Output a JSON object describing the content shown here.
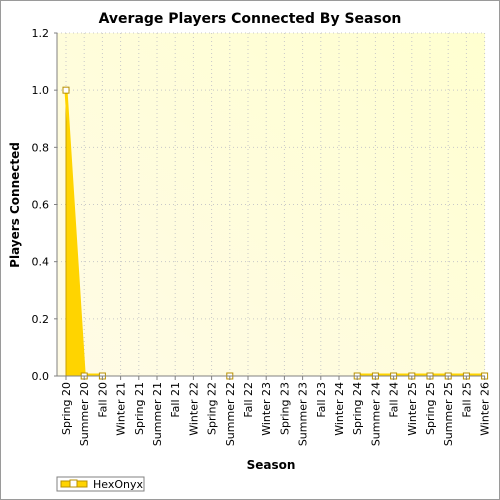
{
  "chart_data": {
    "type": "area",
    "title": "Average Players Connected By Season",
    "xlabel": "Season",
    "ylabel": "Players Connected",
    "ylim": [
      0,
      1.2
    ],
    "yticks": [
      "0.0",
      "0.2",
      "0.4",
      "0.6",
      "0.8",
      "1.0",
      "1.2"
    ],
    "categories": [
      "Spring 20",
      "Summer 20",
      "Fall 20",
      "Winter 21",
      "Spring 21",
      "Summer 21",
      "Fall 21",
      "Winter 22",
      "Spring 22",
      "Summer 22",
      "Fall 22",
      "Winter 23",
      "Spring 23",
      "Summer 23",
      "Fall 23",
      "Winter 24",
      "Spring 24",
      "Summer 24",
      "Fall 24",
      "Winter 25",
      "Spring 25",
      "Summer 25",
      "Fall 25",
      "Winter 26"
    ],
    "series": [
      {
        "name": "HexOnyx",
        "color": "#ffd400",
        "values": [
          1.0,
          0,
          0,
          null,
          null,
          null,
          null,
          null,
          null,
          0,
          null,
          null,
          null,
          null,
          null,
          null,
          0,
          0,
          0,
          0,
          0,
          0,
          0,
          0
        ]
      }
    ],
    "grid": true,
    "legend": "bottom-left",
    "plot_background": [
      "#fffbe6",
      "#ffffd0"
    ]
  }
}
